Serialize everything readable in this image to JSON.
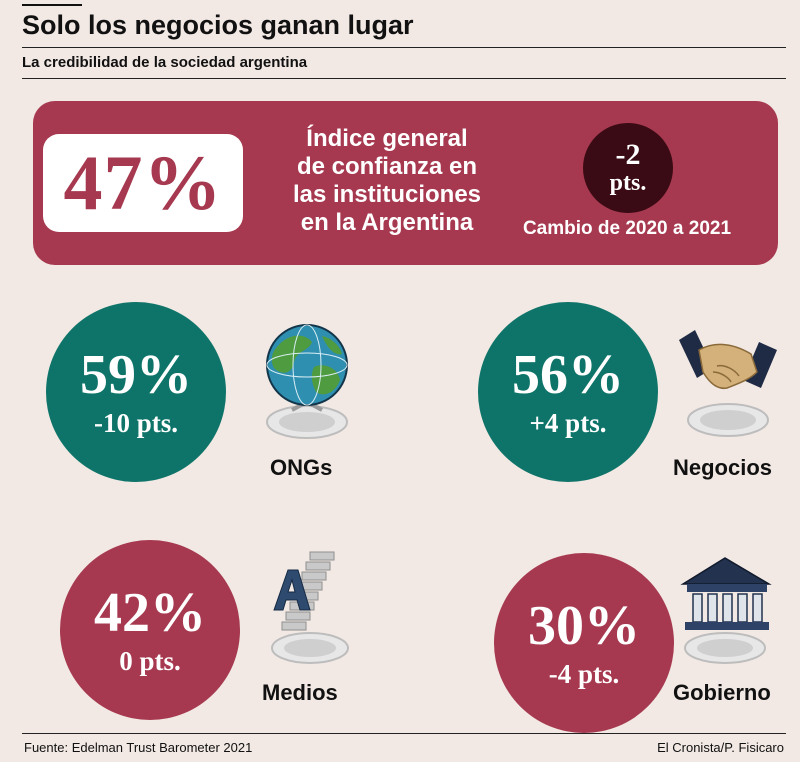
{
  "header": {
    "title": "Solo los negocios ganan lugar",
    "subtitle": "La credibilidad de la sociedad argentina"
  },
  "banner": {
    "value": "47%",
    "description_lines": [
      "Índice general",
      "de confianza en",
      "las instituciones",
      "en la Argentina"
    ],
    "change_value": "-2",
    "change_unit": "pts.",
    "change_label": "Cambio de 2020 a 2021"
  },
  "stats": {
    "ongs": {
      "value": "59%",
      "change": "-10 pts.",
      "label": "ONGs",
      "icon": "globe-icon",
      "color": "#0e7469"
    },
    "negocios": {
      "value": "56%",
      "change": "+4 pts.",
      "label": "Negocios",
      "icon": "handshake-icon",
      "color": "#0e7469"
    },
    "medios": {
      "value": "42%",
      "change": "0 pts.",
      "label": "Medios",
      "icon": "media-letter-icon",
      "color": "#a6394f"
    },
    "gobierno": {
      "value": "30%",
      "change": "-4 pts.",
      "label": "Gobierno",
      "icon": "government-building-icon",
      "color": "#a6394f"
    }
  },
  "footer": {
    "source": "Fuente: Edelman Trust Barometer 2021",
    "credit": "El Cronista/P. Fisicaro"
  },
  "colors": {
    "background": "#f2e9e4",
    "accent_red": "#a6394f",
    "accent_teal": "#0e7469",
    "dark_circle": "#3a0b14"
  }
}
